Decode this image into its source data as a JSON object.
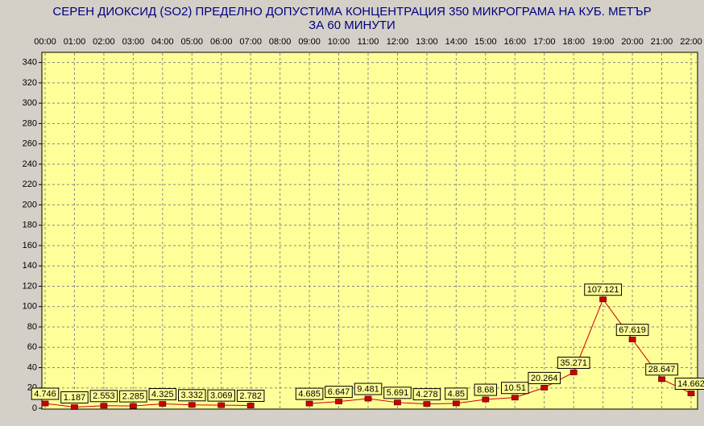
{
  "chart_data": {
    "type": "line",
    "title": "СЕРЕН ДИОКСИД  (SO2)  ПРЕДЕЛНО ДОПУСТИМА КОНЦЕНТРАЦИЯ 350 МИКРОГРАМА  НА КУБ. МЕТЪР",
    "subtitle": "ЗА 60 МИНУТИ",
    "categories": [
      "00:00",
      "01:00",
      "02:00",
      "03:00",
      "04:00",
      "05:00",
      "06:00",
      "07:00",
      "08:00",
      "09:00",
      "10:00",
      "11:00",
      "12:00",
      "13:00",
      "14:00",
      "15:00",
      "16:00",
      "17:00",
      "18:00",
      "19:00",
      "20:00",
      "21:00",
      "22:00"
    ],
    "values": [
      4.746,
      1.187,
      2.553,
      2.285,
      4.325,
      3.332,
      3.069,
      2.782,
      null,
      4.685,
      6.647,
      9.481,
      5.691,
      4.278,
      4.85,
      8.68,
      10.51,
      20.264,
      35.271,
      107.121,
      67.619,
      28.647,
      14.662
    ],
    "color": "#cc0000",
    "ylim": [
      0,
      350
    ],
    "yticks": [
      0,
      20,
      40,
      60,
      80,
      100,
      120,
      140,
      160,
      180,
      200,
      220,
      240,
      260,
      280,
      300,
      320,
      340
    ],
    "grid": true
  }
}
